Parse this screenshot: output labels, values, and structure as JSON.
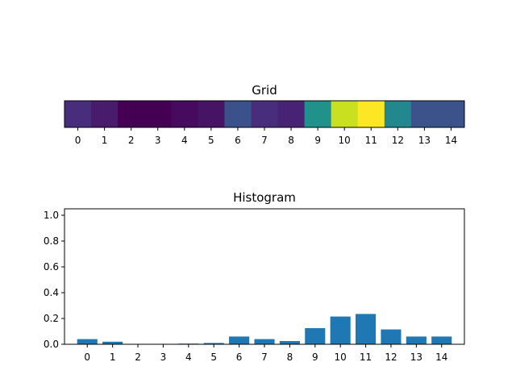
{
  "chart_data": [
    {
      "type": "heatmap",
      "title": "Grid",
      "categories": [
        "0",
        "1",
        "2",
        "3",
        "4",
        "5",
        "6",
        "7",
        "8",
        "9",
        "10",
        "11",
        "12",
        "13",
        "14"
      ],
      "values": [
        0.04,
        0.02,
        0.0,
        0.0,
        0.005,
        0.01,
        0.06,
        0.04,
        0.025,
        0.125,
        0.215,
        0.235,
        0.115,
        0.06,
        0.06
      ],
      "colormap": "viridis",
      "colors": [
        "#472d7b",
        "#481b6d",
        "#440154",
        "#440154",
        "#460b5e",
        "#471365",
        "#3b518b",
        "#472d7b",
        "#482374",
        "#21918c",
        "#c8e020",
        "#fde725",
        "#23888e",
        "#3b528b",
        "#3b528b"
      ]
    },
    {
      "type": "bar",
      "title": "Histogram",
      "categories": [
        "0",
        "1",
        "2",
        "3",
        "4",
        "5",
        "6",
        "7",
        "8",
        "9",
        "10",
        "11",
        "12",
        "13",
        "14"
      ],
      "values": [
        0.04,
        0.02,
        0.0,
        0.0,
        0.005,
        0.01,
        0.06,
        0.04,
        0.025,
        0.125,
        0.215,
        0.235,
        0.115,
        0.06,
        0.06
      ],
      "ylim": [
        0,
        1.05
      ],
      "yticks": [
        "0.0",
        "0.2",
        "0.4",
        "0.6",
        "0.8",
        "1.0"
      ],
      "bar_color": "#1f77b4"
    }
  ]
}
